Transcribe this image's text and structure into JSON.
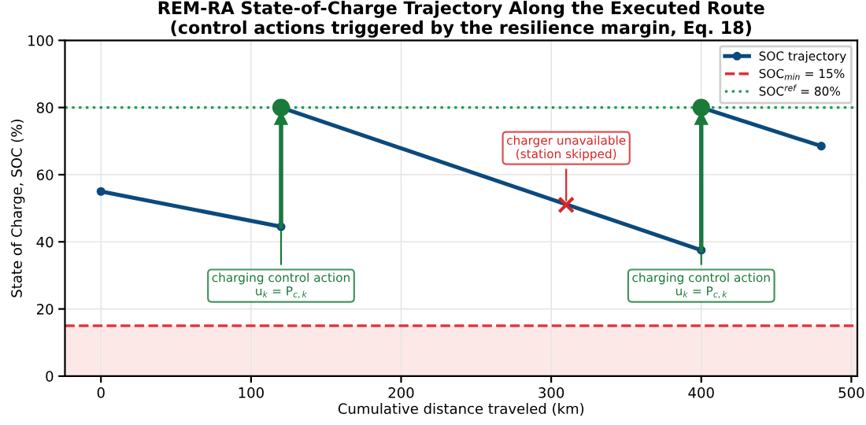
{
  "chart_data": {
    "type": "line",
    "title": "REM-RA State-of-Charge Trajectory Along the Executed Route\n(control actions triggered by the resilience margin, Eq. 18)",
    "xlabel": "Cumulative distance traveled (km)",
    "ylabel": "State of Charge, SOC (%)",
    "series": [
      {
        "name": "SOC trajectory",
        "color": "#0b4a7d",
        "marker": "circle",
        "x": [
          0,
          120,
          120,
          400,
          400,
          480
        ],
        "values": [
          55,
          44.5,
          80,
          37.5,
          80,
          68.5
        ]
      },
      {
        "type": "line",
        "color": "#1a7a3a",
        "marker": "circle",
        "x": [
          120,
          120
        ],
        "values": [
          44.5,
          80
        ]
      },
      {
        "type": "line",
        "color": "#1a7a3a",
        "marker": "circle",
        "x": [
          400,
          400
        ],
        "values": [
          37.5,
          80
        ]
      },
      {
        "type": "scatter",
        "color": "#d62728",
        "marker": "cross",
        "x": [
          310
        ],
        "values": [
          51
        ]
      }
    ],
    "annotations": [
      {
        "text": "charging control action\nu$_{k}$ = P$_{c,k}$",
        "x": 120,
        "y": 44.5
      },
      {
        "text": "charging control action\nu$_{k}$ = P$_{c,k}$",
        "x": 400,
        "y": 37.5
      },
      {
        "text": "charger unavailable\n(station skipped)",
        "x": 310,
        "y": 51
      }
    ],
    "ref_lines": [
      {
        "axis": "y",
        "value": 15,
        "label": "SOC$_{min}$ = 15%",
        "color": "#e0303a",
        "line_style": "dashed"
      },
      {
        "axis": "y",
        "value": 80,
        "label": "SOC$^{ref}$ = 80%",
        "color": "#1f9a5a",
        "line_style": "dotted"
      }
    ],
    "bands": [
      {
        "axis": "y",
        "from": 0,
        "to": 15,
        "color": "#fde8e8"
      }
    ],
    "xlim": [
      -24,
      504
    ],
    "xticks": [
      0,
      100,
      200,
      300,
      400,
      500
    ],
    "ylim": [
      0,
      100
    ],
    "yticks": [
      0,
      20,
      40,
      60,
      80,
      100
    ],
    "grid": true,
    "legend": "top right"
  }
}
